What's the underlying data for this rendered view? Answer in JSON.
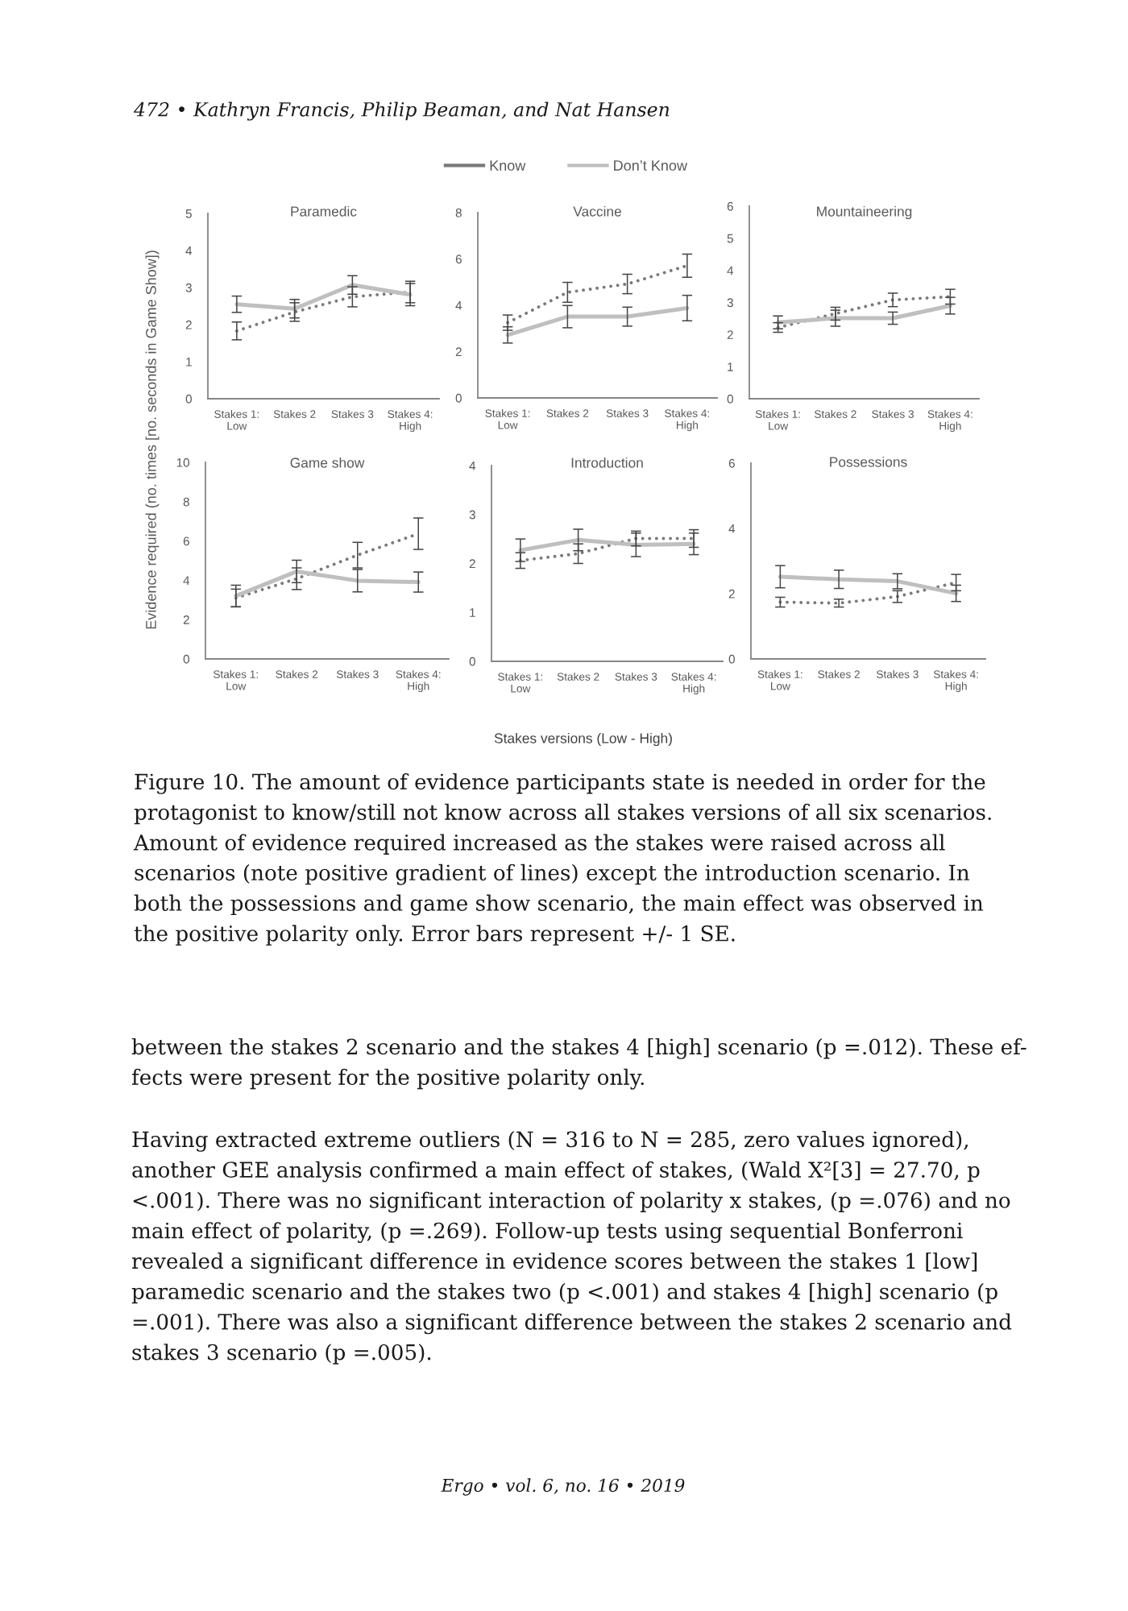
{
  "chart_data": [
    {
      "type": "line",
      "title": "Paramedic",
      "ylabel": "Evidence required (no. times [no. seconds in Game Show])",
      "legend": "top",
      "categories": [
        "Stakes 1:\nLow",
        "Stakes 2",
        "Stakes 3",
        "Stakes 4:\nHigh"
      ],
      "ylim": [
        0,
        5
      ],
      "yticks": [
        0,
        1,
        2,
        3,
        4,
        5
      ],
      "series": [
        {
          "name": "Know",
          "color": "#7a7a7a",
          "line_style": "dotted",
          "values": [
            1.83,
            2.34,
            2.75,
            2.88
          ],
          "errors": [
            0.24,
            0.25,
            0.27,
            0.29
          ]
        },
        {
          "name": "Don’t Know",
          "color": "#bfbfbf",
          "line_style": "solid",
          "values": [
            2.55,
            2.43,
            3.07,
            2.81
          ],
          "errors": [
            0.22,
            0.25,
            0.25,
            0.3
          ]
        }
      ],
      "annotations": [
        "472 • Kathryn Francis, Philip Beaman, and Nat Hansen",
        "Figure 10. The amount of evidence participants state is needed in order for the\nprotagonist to know/still not know across all stakes versions of all six scenarios.\nAmount of evidence required increased as the stakes were raised across all\nscenarios (note positive gradient of lines) except the introduction scenario. In\nboth the possessions and game show scenario, the main effect was observed in\nthe positive polarity only. Error bars represent +/- 1 SE.",
        "between the stakes 2 scenario and the stakes 4 [high] scenario (p =.012). These ef-\nfects were present for the positive polarity only.",
        "Having extracted extreme outliers (N = 316 to N = 285, zero values ignored),\nanother GEE analysis confirmed a main effect of stakes, (Wald X²[3] = 27.70, p\n<.001). There was no significant interaction of polarity x stakes, (p =.076) and no\nmain effect of polarity, (p =.269). Follow-up tests using sequential Bonferroni\nrevealed a significant difference in evidence scores between the stakes 1 [low]\nparamedic scenario and the stakes two (p <.001) and stakes 4 [high] scenario (p\n=.001). There was also a significant difference between the stakes 2 scenario and\nstakes 3 scenario (p =.005).",
        "Ergo • vol. 6, no. 16 • 2019"
      ]
    },
    {
      "type": "line",
      "title": "Vaccine",
      "categories": [
        "Stakes 1:\nLow",
        "Stakes 2",
        "Stakes 3",
        "Stakes 4:\nHigh"
      ],
      "ylim": [
        0,
        8
      ],
      "yticks": [
        0,
        2,
        4,
        6,
        8
      ],
      "series": [
        {
          "color": "#7a7a7a",
          "line_style": "dotted",
          "values": [
            3.25,
            4.56,
            4.92,
            5.71
          ],
          "errors": [
            0.33,
            0.43,
            0.42,
            0.5
          ]
        },
        {
          "color": "#bfbfbf",
          "line_style": "solid",
          "values": [
            2.72,
            3.51,
            3.51,
            3.88
          ],
          "errors": [
            0.35,
            0.48,
            0.41,
            0.55
          ]
        }
      ]
    },
    {
      "type": "line",
      "title": "Mountaineering",
      "categories": [
        "Stakes 1:\nLow",
        "Stakes 2",
        "Stakes 3",
        "Stakes 4:\nHigh"
      ],
      "ylim": [
        0,
        6
      ],
      "yticks": [
        0,
        1,
        2,
        3,
        4,
        5,
        6
      ],
      "series": [
        {
          "color": "#7a7a7a",
          "line_style": "dotted",
          "values": [
            2.22,
            2.65,
            3.08,
            3.18
          ],
          "errors": [
            0.15,
            0.2,
            0.21,
            0.23
          ]
        },
        {
          "color": "#bfbfbf",
          "line_style": "solid",
          "values": [
            2.38,
            2.51,
            2.51,
            2.9
          ],
          "errors": [
            0.2,
            0.25,
            0.19,
            0.26
          ]
        }
      ]
    },
    {
      "type": "line",
      "title": "Game show",
      "categories": [
        "Stakes 1:\nLow",
        "Stakes 2",
        "Stakes 3",
        "Stakes 4:\nHigh"
      ],
      "ylim": [
        0,
        10
      ],
      "yticks": [
        0,
        2,
        4,
        6,
        8,
        10
      ],
      "series": [
        {
          "color": "#7a7a7a",
          "line_style": "dotted",
          "values": [
            3.1,
            4.08,
            5.28,
            6.37
          ],
          "errors": [
            0.45,
            0.55,
            0.65,
            0.8
          ]
        },
        {
          "color": "#bfbfbf",
          "line_style": "solid",
          "values": [
            3.2,
            4.45,
            3.98,
            3.91
          ],
          "errors": [
            0.55,
            0.57,
            0.57,
            0.51
          ]
        }
      ]
    },
    {
      "type": "line",
      "title": "Introduction",
      "xlabel": "Stakes versions (Low - High)",
      "categories": [
        "Stakes 1:\nLow",
        "Stakes 2",
        "Stakes 3",
        "Stakes 4:\nHigh"
      ],
      "ylim": [
        0,
        4
      ],
      "yticks": [
        0,
        1,
        2,
        3,
        4
      ],
      "series": [
        {
          "color": "#7a7a7a",
          "line_style": "dotted",
          "values": [
            2.06,
            2.2,
            2.51,
            2.51
          ],
          "errors": [
            0.16,
            0.2,
            0.15,
            0.18
          ]
        },
        {
          "color": "#bfbfbf",
          "line_style": "solid",
          "values": [
            2.27,
            2.48,
            2.38,
            2.4
          ],
          "errors": [
            0.23,
            0.22,
            0.24,
            0.22
          ]
        }
      ]
    },
    {
      "type": "line",
      "title": "Possessions",
      "categories": [
        "Stakes 1:\nLow",
        "Stakes 2",
        "Stakes 3",
        "Stakes 4:\nHigh"
      ],
      "ylim": [
        0,
        6
      ],
      "yticks": [
        0,
        2,
        4,
        6
      ],
      "series": [
        {
          "color": "#7a7a7a",
          "line_style": "dotted",
          "values": [
            1.74,
            1.71,
            1.91,
            2.34
          ],
          "errors": [
            0.15,
            0.12,
            0.18,
            0.25
          ]
        },
        {
          "color": "#bfbfbf",
          "line_style": "solid",
          "values": [
            2.52,
            2.44,
            2.38,
            2.01
          ],
          "errors": [
            0.34,
            0.28,
            0.23,
            0.25
          ]
        }
      ]
    }
  ]
}
